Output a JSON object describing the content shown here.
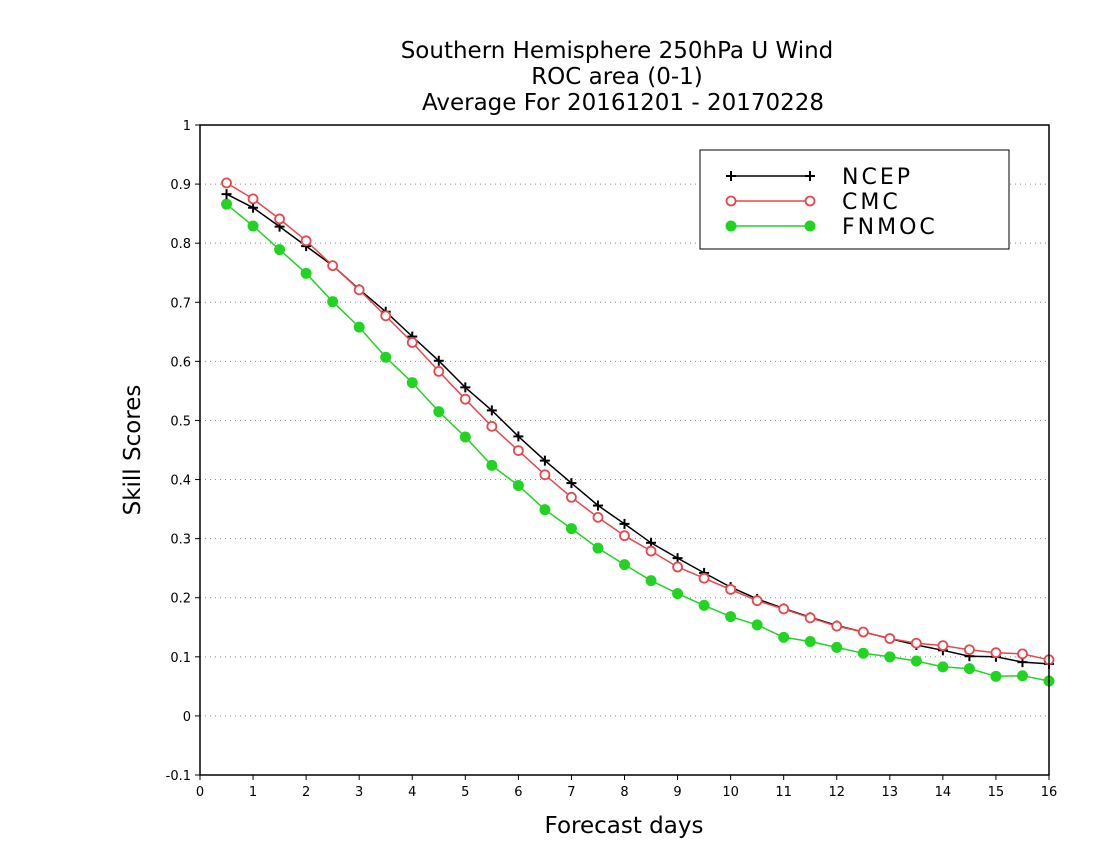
{
  "chart_data": {
    "type": "line",
    "title_lines": [
      "Southern Hemisphere 250hPa U Wind",
      "ROC area (0-1)",
      "Average For 20161201 - 20170228"
    ],
    "xlabel": "Forecast days",
    "ylabel": "Skill Scores",
    "xlim": [
      0,
      16
    ],
    "ylim": [
      -0.1,
      1
    ],
    "x_ticks": [
      "0",
      "1",
      "2",
      "3",
      "4",
      "5",
      "6",
      "7",
      "8",
      "9",
      "10",
      "11",
      "12",
      "13",
      "14",
      "15",
      "16"
    ],
    "y_ticks": [
      "1",
      "0.9",
      "0.8",
      "0.7",
      "0.6",
      "0.5",
      "0.4",
      "0.3",
      "0.2",
      "0.1",
      "0",
      "-0.1"
    ],
    "grid": "dotted horizontal",
    "legend_position": "top-right",
    "x": [
      0.5,
      1,
      1.5,
      2,
      2.5,
      3,
      3.5,
      4,
      4.5,
      5,
      5.5,
      6,
      6.5,
      7,
      7.5,
      8,
      8.5,
      9,
      9.5,
      10,
      10.5,
      11,
      11.5,
      12,
      12.5,
      13,
      13.5,
      14,
      14.5,
      15,
      15.5,
      16
    ],
    "series": [
      {
        "name": "NCEP",
        "color": "#000000",
        "marker": "plus",
        "values": [
          0.883,
          0.86,
          0.828,
          0.795,
          0.762,
          0.722,
          0.684,
          0.642,
          0.601,
          0.556,
          0.517,
          0.473,
          0.432,
          0.394,
          0.356,
          0.325,
          0.293,
          0.267,
          0.242,
          0.218,
          0.198,
          0.182,
          0.167,
          0.153,
          0.142,
          0.131,
          0.12,
          0.111,
          0.101,
          0.1,
          0.091,
          0.088
        ]
      },
      {
        "name": "CMC",
        "color": "#e8474c",
        "marker": "open-circle",
        "values": [
          0.902,
          0.875,
          0.841,
          0.804,
          0.762,
          0.721,
          0.677,
          0.632,
          0.583,
          0.536,
          0.49,
          0.449,
          0.408,
          0.37,
          0.336,
          0.305,
          0.279,
          0.252,
          0.233,
          0.214,
          0.195,
          0.181,
          0.166,
          0.152,
          0.142,
          0.131,
          0.123,
          0.119,
          0.112,
          0.107,
          0.105,
          0.095
        ]
      },
      {
        "name": "FNMOC",
        "color": "#22d422",
        "marker": "filled-circle",
        "values": [
          0.866,
          0.829,
          0.789,
          0.749,
          0.701,
          0.658,
          0.607,
          0.564,
          0.515,
          0.472,
          0.424,
          0.39,
          0.349,
          0.317,
          0.284,
          0.256,
          0.229,
          0.207,
          0.187,
          0.168,
          0.154,
          0.133,
          0.126,
          0.116,
          0.106,
          0.1,
          0.093,
          0.083,
          0.08,
          0.067,
          0.068,
          0.059
        ]
      }
    ]
  }
}
